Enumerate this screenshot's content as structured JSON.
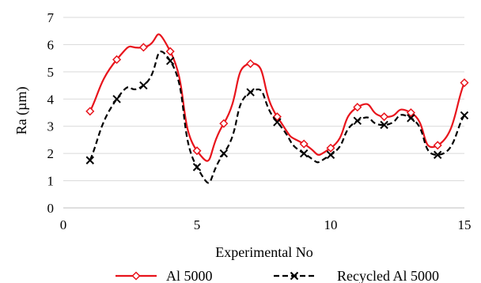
{
  "chart_data": {
    "type": "line",
    "title": "",
    "xlabel": "Experimental No",
    "ylabel": "Ra (µm)",
    "xlim": [
      0,
      15
    ],
    "ylim": [
      0,
      7
    ],
    "x_ticks": [
      0,
      5,
      10,
      15
    ],
    "y_ticks": [
      0,
      1,
      2,
      3,
      4,
      5,
      6,
      7
    ],
    "grid": "horizontal",
    "legend_position": "bottom",
    "x": [
      1,
      2,
      3,
      4,
      5,
      6,
      7,
      8,
      9,
      10,
      11,
      12,
      13,
      14,
      15
    ],
    "series": [
      {
        "name": "Al 5000",
        "color": "#e8141c",
        "marker": "diamond-open",
        "line": "solid",
        "values": [
          3.55,
          5.45,
          5.9,
          5.75,
          2.1,
          3.1,
          5.3,
          3.35,
          2.35,
          2.2,
          3.7,
          3.35,
          3.5,
          2.3,
          4.6
        ]
      },
      {
        "name": "Recycled Al 5000",
        "color": "#000000",
        "marker": "x",
        "line": "dashed",
        "values": [
          1.75,
          4.0,
          4.5,
          5.4,
          1.5,
          2.0,
          4.25,
          3.15,
          2.0,
          1.95,
          3.2,
          3.05,
          3.3,
          1.95,
          3.4
        ]
      }
    ]
  }
}
